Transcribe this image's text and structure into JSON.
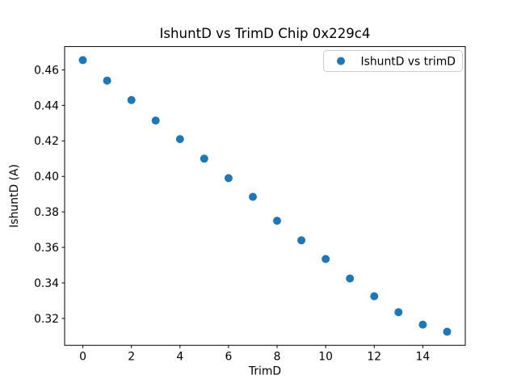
{
  "window": {
    "background": "#ffffff",
    "spine_color": "#000000",
    "legend_border_color": "#cccccc"
  },
  "chart_data": {
    "type": "scatter",
    "title": "IshuntD vs TrimD Chip 0x229c4",
    "xlabel": "TrimD",
    "ylabel": "IshuntD (A)",
    "legend": [
      "IshuntD vs trimD"
    ],
    "legend_location": "upper right",
    "marker_color": "#1f77b4",
    "grid": false,
    "x": [
      0,
      1,
      2,
      3,
      4,
      5,
      6,
      7,
      8,
      9,
      10,
      11,
      12,
      13,
      14,
      15
    ],
    "y": [
      0.4655,
      0.454,
      0.443,
      0.4315,
      0.421,
      0.41,
      0.399,
      0.3885,
      0.375,
      0.364,
      0.3535,
      0.3425,
      0.3325,
      0.3235,
      0.3165,
      0.3125
    ],
    "xticks": [
      0,
      2,
      4,
      6,
      8,
      10,
      12,
      14
    ],
    "yticks": [
      0.32,
      0.34,
      0.36,
      0.38,
      0.4,
      0.42,
      0.44,
      0.46
    ],
    "xlim": [
      -0.75,
      15.75
    ],
    "ylim": [
      0.30485,
      0.47315
    ]
  }
}
